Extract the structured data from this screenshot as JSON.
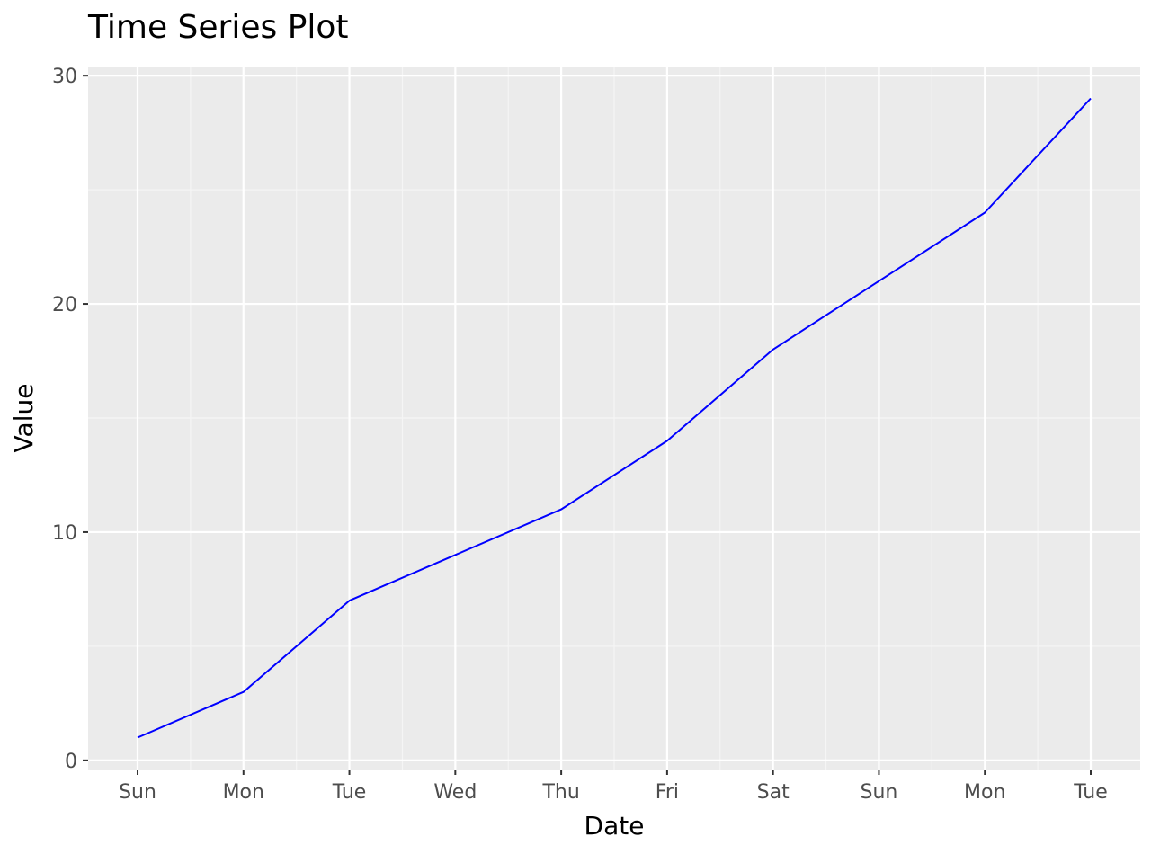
{
  "chart_data": {
    "type": "line",
    "title": "Time Series Plot",
    "xlabel": "Date",
    "ylabel": "Value",
    "categories": [
      "Sun",
      "Mon",
      "Tue",
      "Wed",
      "Thu",
      "Fri",
      "Sat",
      "Sun",
      "Mon",
      "Tue"
    ],
    "series": [
      {
        "values": [
          1,
          3,
          7,
          9,
          11,
          14,
          18,
          21,
          24,
          29
        ]
      }
    ],
    "ylim": [
      -0.4,
      30.4
    ],
    "yticks": [
      0,
      10,
      20,
      30
    ],
    "grid": true,
    "legend": "none",
    "colors": {
      "line": "#0000ff",
      "panel_background": "#ebebeb",
      "grid_major": "#ffffff",
      "grid_minor": "#f5f5f5",
      "tick_text": "#4d4d4d"
    }
  }
}
